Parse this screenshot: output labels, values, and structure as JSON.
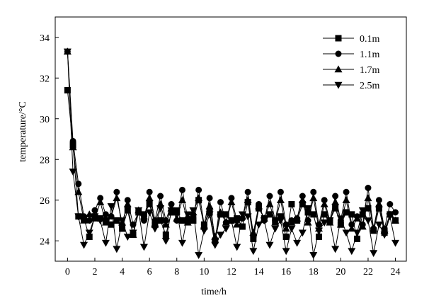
{
  "chart_data": {
    "type": "line",
    "xlabel": "time/h",
    "ylabel": "temperature/°C",
    "xlim": [
      -0.9,
      24.8
    ],
    "ylim": [
      23,
      35
    ],
    "xticks": [
      0,
      2,
      4,
      6,
      8,
      10,
      12,
      14,
      16,
      18,
      20,
      22,
      24
    ],
    "yticks": [
      24,
      26,
      28,
      30,
      32,
      34
    ],
    "grid": false,
    "legend_position": "top-right",
    "x": [
      0,
      0.4,
      0.8,
      1.2,
      1.6,
      2.0,
      2.4,
      2.8,
      3.2,
      3.6,
      4.0,
      4.4,
      4.8,
      5.2,
      5.6,
      6.0,
      6.4,
      6.8,
      7.2,
      7.6,
      8.0,
      8.4,
      8.8,
      9.2,
      9.6,
      10.0,
      10.4,
      10.8,
      11.2,
      11.6,
      12.0,
      12.4,
      12.8,
      13.2,
      13.6,
      14.0,
      14.4,
      14.8,
      15.2,
      15.6,
      16.0,
      16.4,
      16.8,
      17.2,
      17.6,
      18.0,
      18.4,
      18.8,
      19.2,
      19.6,
      20.0,
      20.4,
      20.8,
      21.2,
      21.6,
      22.0,
      22.4,
      22.8,
      23.2,
      23.6,
      24.0
    ],
    "series": [
      {
        "name": "0.1m",
        "marker": "square",
        "values": [
          31.4,
          28.7,
          25.2,
          25.1,
          24.2,
          25.2,
          25.1,
          25.0,
          24.8,
          25.0,
          24.6,
          25.5,
          24.3,
          25.4,
          25.3,
          25.8,
          24.8,
          25.0,
          24.3,
          25.4,
          25.4,
          25.0,
          25.0,
          25.0,
          26.0,
          24.8,
          25.4,
          24.0,
          25.3,
          25.3,
          25.0,
          25.1,
          24.7,
          25.9,
          24.1,
          25.6,
          25.1,
          25.3,
          25.0,
          25.2,
          24.2,
          25.8,
          25.0,
          25.8,
          25.4,
          25.3,
          24.2,
          25.3,
          25.0,
          25.6,
          24.8,
          25.4,
          25.3,
          24.1,
          25.3,
          25.6,
          24.5,
          25.6,
          24.4,
          25.3,
          25.0
        ]
      },
      {
        "name": "1.1m",
        "marker": "circle",
        "values": [
          33.3,
          28.9,
          26.8,
          25.2,
          25.0,
          25.5,
          26.1,
          25.3,
          25.2,
          26.4,
          24.6,
          26.0,
          24.8,
          25.4,
          25.0,
          26.4,
          25.0,
          26.2,
          25.0,
          25.8,
          25.0,
          26.5,
          25.1,
          25.2,
          26.5,
          24.8,
          26.1,
          24.0,
          25.9,
          24.9,
          26.1,
          25.0,
          25.1,
          26.4,
          24.2,
          25.8,
          25.0,
          26.2,
          25.0,
          26.4,
          24.8,
          25.0,
          25.1,
          26.2,
          25.0,
          26.4,
          24.8,
          26.0,
          25.0,
          26.2,
          25.0,
          26.4,
          24.8,
          25.2,
          24.8,
          26.6,
          24.6,
          26.0,
          24.6,
          25.8,
          25.4
        ]
      },
      {
        "name": "1.7m",
        "marker": "triangle-up",
        "values": [
          33.3,
          28.6,
          26.4,
          25.0,
          25.3,
          25.1,
          25.9,
          24.9,
          25.2,
          26.1,
          24.9,
          25.8,
          24.3,
          25.5,
          25.2,
          26.1,
          24.8,
          25.8,
          24.8,
          25.6,
          25.1,
          26.0,
          24.9,
          25.4,
          26.1,
          24.7,
          25.7,
          24.2,
          25.4,
          24.9,
          25.9,
          24.8,
          25.2,
          26.0,
          24.4,
          25.7,
          25.1,
          25.8,
          24.9,
          26.0,
          24.6,
          24.9,
          25.1,
          26.0,
          24.9,
          26.1,
          24.6,
          25.8,
          24.9,
          25.9,
          24.8,
          26.0,
          24.6,
          25.1,
          24.7,
          26.1,
          24.6,
          25.8,
          24.5,
          25.3,
          25.0
        ]
      },
      {
        "name": "2.5m",
        "marker": "triangle-down",
        "values": [
          33.3,
          27.4,
          25.2,
          23.8,
          24.4,
          25.2,
          25.0,
          23.9,
          25.7,
          23.6,
          25.0,
          24.2,
          24.4,
          25.5,
          23.7,
          25.4,
          24.6,
          25.6,
          24.0,
          25.5,
          25.5,
          23.9,
          25.3,
          25.5,
          23.3,
          24.5,
          25.3,
          23.8,
          24.3,
          24.6,
          25.0,
          23.7,
          25.3,
          25.2,
          23.5,
          24.8,
          25.0,
          23.8,
          24.6,
          25.0,
          23.5,
          24.6,
          23.9,
          24.4,
          25.6,
          23.3,
          24.5,
          24.9,
          25.0,
          23.6,
          25.1,
          24.4,
          23.5,
          24.4,
          25.5,
          25.0,
          23.4,
          24.8,
          24.3,
          25.2,
          23.9
        ]
      }
    ]
  }
}
